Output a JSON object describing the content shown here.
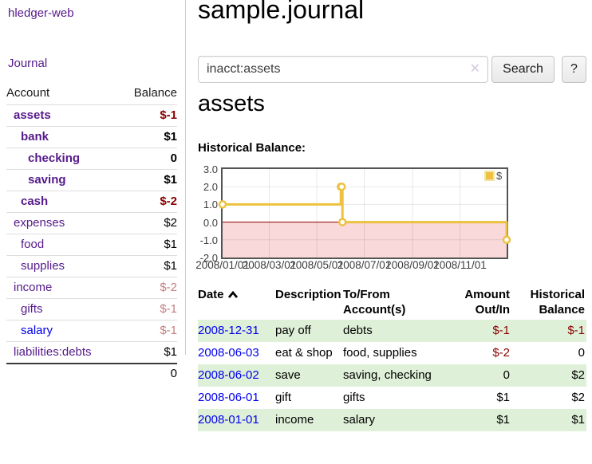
{
  "app": {
    "title": "hledger-web",
    "journal_link": "Journal"
  },
  "colors": {
    "purple": "#551a8b",
    "blue": "#0000ee",
    "negative": "#8b0000",
    "negative_muted": "#c57f7f",
    "stripe_green": "#dff0d8",
    "chart_line_gold": "#edc240",
    "chart_negative_fill": "#f9d9d9",
    "chart_zero_line": "#8b0000"
  },
  "sidebar": {
    "header": {
      "account": "Account",
      "balance": "Balance"
    },
    "accounts": [
      {
        "name": "assets",
        "balance": "$-1",
        "indent": 1,
        "bold": true,
        "name_style": "purple",
        "balance_style": "negative"
      },
      {
        "name": "bank",
        "balance": "$1",
        "indent": 2,
        "bold": true,
        "name_style": "purple",
        "balance_style": "normal"
      },
      {
        "name": "checking",
        "balance": "0",
        "indent": 3,
        "bold": true,
        "name_style": "purple",
        "balance_style": "normal"
      },
      {
        "name": "saving",
        "balance": "$1",
        "indent": 3,
        "bold": true,
        "name_style": "purple",
        "balance_style": "normal"
      },
      {
        "name": "cash",
        "balance": "$-2",
        "indent": 2,
        "bold": true,
        "name_style": "purple",
        "balance_style": "negative"
      },
      {
        "name": "expenses",
        "balance": "$2",
        "indent": 1,
        "bold": false,
        "name_style": "purple",
        "balance_style": "normal"
      },
      {
        "name": "food",
        "balance": "$1",
        "indent": 2,
        "bold": false,
        "name_style": "purple",
        "balance_style": "normal"
      },
      {
        "name": "supplies",
        "balance": "$1",
        "indent": 2,
        "bold": false,
        "name_style": "purple",
        "balance_style": "normal"
      },
      {
        "name": "income",
        "balance": "$-2",
        "indent": 1,
        "bold": false,
        "name_style": "purple",
        "balance_style": "negative-muted"
      },
      {
        "name": "gifts",
        "balance": "$-1",
        "indent": 2,
        "bold": false,
        "name_style": "purple",
        "balance_style": "negative-muted"
      },
      {
        "name": "salary",
        "balance": "$-1",
        "indent": 2,
        "bold": false,
        "name_style": "blue",
        "balance_style": "negative-muted"
      },
      {
        "name": "liabilities:debts",
        "balance": "$1",
        "indent": 1,
        "bold": false,
        "name_style": "purple",
        "balance_style": "normal"
      }
    ],
    "total": "0"
  },
  "header": {
    "title": "sample.journal"
  },
  "search": {
    "value": "inacct:assets",
    "clear_icon": "✕",
    "button_label": "Search",
    "help_label": "?"
  },
  "account_page": {
    "title": "assets",
    "chart_label": "Historical Balance:"
  },
  "chart_data": {
    "type": "line",
    "step": true,
    "title": "Historical Balance:",
    "series": [
      {
        "name": "$",
        "color": "#edc240",
        "points": [
          [
            "2008-01-01",
            1
          ],
          [
            "2008-06-01",
            2
          ],
          [
            "2008-06-02",
            2
          ],
          [
            "2008-06-03",
            0
          ],
          [
            "2008-12-31",
            -1
          ]
        ]
      }
    ],
    "x_range": [
      "2008-01-01",
      "2008-12-31"
    ],
    "x_ticks": [
      {
        "date": "2008-01-01",
        "label": "2008/01/01"
      },
      {
        "date": "2008-03-01",
        "label": "2008/03/01"
      },
      {
        "date": "2008-05-01",
        "label": "2008/05/01"
      },
      {
        "date": "2008-07-01",
        "label": "2008/07/01"
      },
      {
        "date": "2008-09-01",
        "label": "2008/09/01"
      },
      {
        "date": "2008-11-01",
        "label": "2008/11/01"
      }
    ],
    "y_ticks": [
      {
        "value": 3,
        "label": "3.0"
      },
      {
        "value": 2,
        "label": "2.0"
      },
      {
        "value": 1,
        "label": "1.0"
      },
      {
        "value": 0,
        "label": "0.0"
      },
      {
        "value": -1,
        "label": "-1.0"
      },
      {
        "value": -2,
        "label": "-2.0"
      }
    ],
    "ylim": [
      -2,
      3
    ],
    "grid": true,
    "legend_position": "top-right",
    "negative_region_fill": "#f9d9d9",
    "zero_line_color": "#8b0000"
  },
  "register": {
    "columns": [
      {
        "label": "Date",
        "sort": "ascending"
      },
      {
        "label": "Description"
      },
      {
        "label": "To/From Account(s)"
      },
      {
        "label": "Amount Out/In"
      },
      {
        "label": "Historical Balance"
      }
    ],
    "rows": [
      {
        "date": "2008-12-31",
        "description": "pay off",
        "accounts": "debts",
        "amount": "$-1",
        "balance": "$-1"
      },
      {
        "date": "2008-06-03",
        "description": "eat & shop",
        "accounts": "food, supplies",
        "amount": "$-2",
        "balance": "0"
      },
      {
        "date": "2008-06-02",
        "description": "save",
        "accounts": "saving, checking",
        "amount": "0",
        "balance": "$2"
      },
      {
        "date": "2008-06-01",
        "description": "gift",
        "accounts": "gifts",
        "amount": "$1",
        "balance": "$2"
      },
      {
        "date": "2008-01-01",
        "description": "income",
        "accounts": "salary",
        "amount": "$1",
        "balance": "$1"
      }
    ]
  }
}
